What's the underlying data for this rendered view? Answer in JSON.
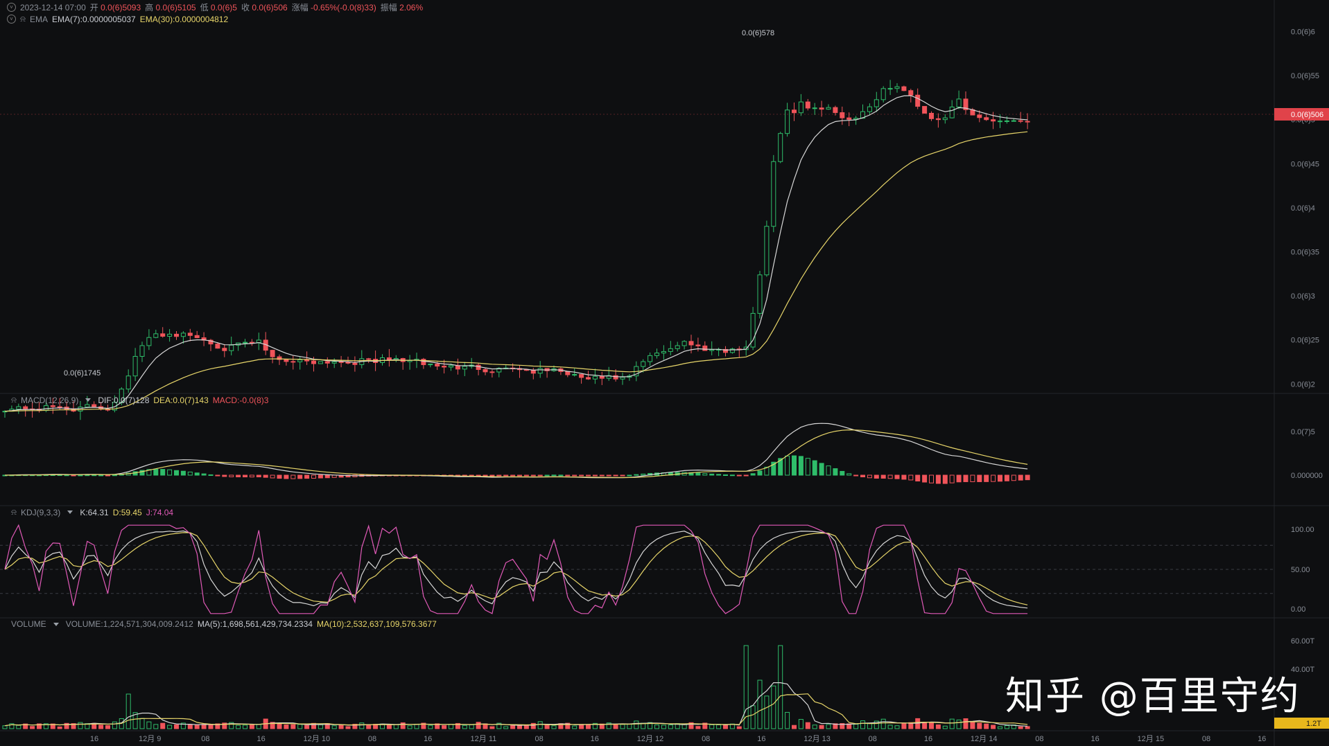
{
  "header": {
    "ohlc": {
      "date": "2023-12-14 07:00",
      "open_label": "开",
      "open": "0.0(6)5093",
      "high_label": "高",
      "high": "0.0(6)5105",
      "low_label": "低",
      "low": "0.0(6)5",
      "close_label": "收",
      "close": "0.0(6)506",
      "change_label": "涨幅",
      "change": "-0.65%(-0.0(8)33)",
      "amp_label": "振幅",
      "amp": "2.06%"
    },
    "ema": {
      "name": "EMA",
      "ema7": "EMA(7):0.0000005037",
      "ema30": "EMA(30):0.0000004812"
    }
  },
  "macd": {
    "name": "MACD(12,26,9)",
    "dif": "DIF:0.0(7)128",
    "dea": "DEA:0.0(7)143",
    "macd": "MACD:-0.0(8)3"
  },
  "kdj": {
    "name": "KDJ(9,3,3)",
    "k": "K:64.31",
    "d": "D:59.45",
    "j": "J:74.04"
  },
  "volume": {
    "name": "VOLUME",
    "vol": "VOLUME:1,224,571,304,009.2412",
    "ma5": "MA(5):1,698,561,429,734.2334",
    "ma10": "MA(10):2,532,637,109,576.3677"
  },
  "price_axis": [
    "0.0(6)6",
    "0.0(6)55",
    "0.0(6)5",
    "0.0(6)45",
    "0.0(6)4",
    "0.0(6)35",
    "0.0(6)3",
    "0.0(6)25",
    "0.0(6)2"
  ],
  "current_price": "0.0(6)506",
  "high_marker": "0.0(6)578",
  "low_marker": "0.0(6)1745",
  "macd_axis": [
    "0.0(7)5",
    "0.000000"
  ],
  "kdj_axis": [
    "100.00",
    "50.00",
    "0.00"
  ],
  "volume_axis": [
    "60.00T",
    "40.00T"
  ],
  "current_volume": "1.2T",
  "time_axis": [
    "16",
    "12月 9",
    "08",
    "16",
    "12月 10",
    "08",
    "16",
    "12月 11",
    "08",
    "16",
    "12月 12",
    "08",
    "16",
    "12月 13",
    "08",
    "16",
    "12月 14",
    "08",
    "16",
    "12月 15",
    "08",
    "16"
  ],
  "watermark": "知乎 @百里守约",
  "colors": {
    "up": "#2fbd6a",
    "down": "#f0545a",
    "ema7": "#d8d8d8",
    "ema30": "#e8d66a",
    "kdj_j": "#e15ab8",
    "bg": "#0e0f11"
  }
}
